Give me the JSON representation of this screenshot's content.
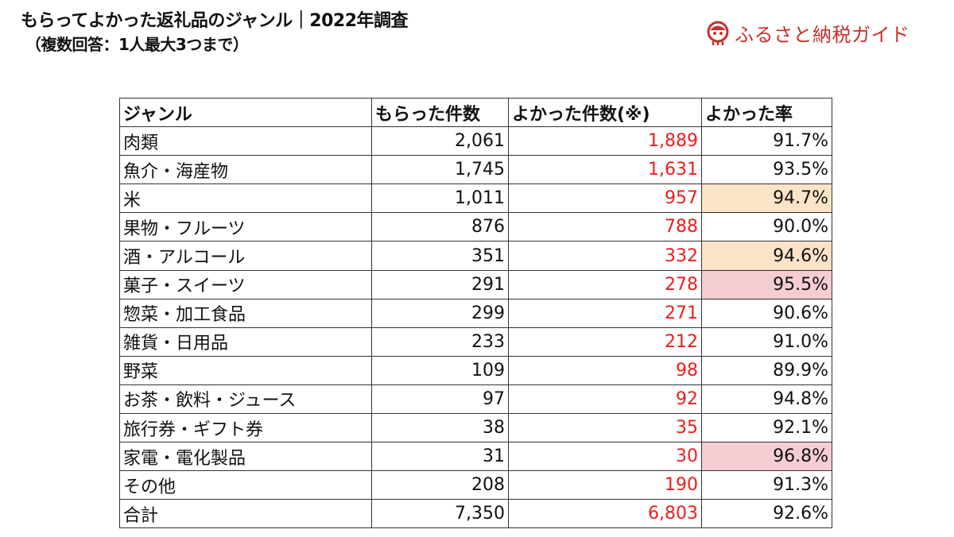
{
  "title": {
    "line1": "もらってよかった返礼品のジャンル｜2022年調査",
    "line2": "（複数回答：1人最大3つまで）"
  },
  "logo": {
    "text": "ふるさと納税ガイド",
    "icon": "furusato-mascot-icon",
    "color": "#c8302a"
  },
  "chart_data": {
    "type": "table",
    "columns": [
      "ジャンル",
      "もらった件数",
      "よかった件数(※)",
      "よかった率"
    ],
    "rows": [
      {
        "genre": "肉類",
        "received": "2,061",
        "good": "1,889",
        "rate": "91.7%",
        "highlight": ""
      },
      {
        "genre": "魚介・海産物",
        "received": "1,745",
        "good": "1,631",
        "rate": "93.5%",
        "highlight": ""
      },
      {
        "genre": "米",
        "received": "1,011",
        "good": "957",
        "rate": "94.7%",
        "highlight": "orange"
      },
      {
        "genre": "果物・フルーツ",
        "received": "876",
        "good": "788",
        "rate": "90.0%",
        "highlight": ""
      },
      {
        "genre": "酒・アルコール",
        "received": "351",
        "good": "332",
        "rate": "94.6%",
        "highlight": "orange"
      },
      {
        "genre": "菓子・スイーツ",
        "received": "291",
        "good": "278",
        "rate": "95.5%",
        "highlight": "pink"
      },
      {
        "genre": "惣菜・加工食品",
        "received": "299",
        "good": "271",
        "rate": "90.6%",
        "highlight": ""
      },
      {
        "genre": "雑貨・日用品",
        "received": "233",
        "good": "212",
        "rate": "91.0%",
        "highlight": ""
      },
      {
        "genre": "野菜",
        "received": "109",
        "good": "98",
        "rate": "89.9%",
        "highlight": ""
      },
      {
        "genre": "お茶・飲料・ジュース",
        "received": "97",
        "good": "92",
        "rate": "94.8%",
        "highlight": ""
      },
      {
        "genre": "旅行券・ギフト券",
        "received": "38",
        "good": "35",
        "rate": "92.1%",
        "highlight": ""
      },
      {
        "genre": "家電・電化製品",
        "received": "31",
        "good": "30",
        "rate": "96.8%",
        "highlight": "pink"
      },
      {
        "genre": "その他",
        "received": "208",
        "good": "190",
        "rate": "91.3%",
        "highlight": ""
      },
      {
        "genre": "合計",
        "received": "7,350",
        "good": "6,803",
        "rate": "92.6%",
        "highlight": ""
      }
    ],
    "colors": {
      "good_count_text": "#ee1c1c",
      "highlight_orange": "#fde4c8",
      "highlight_pink": "#f6cdd2"
    }
  }
}
